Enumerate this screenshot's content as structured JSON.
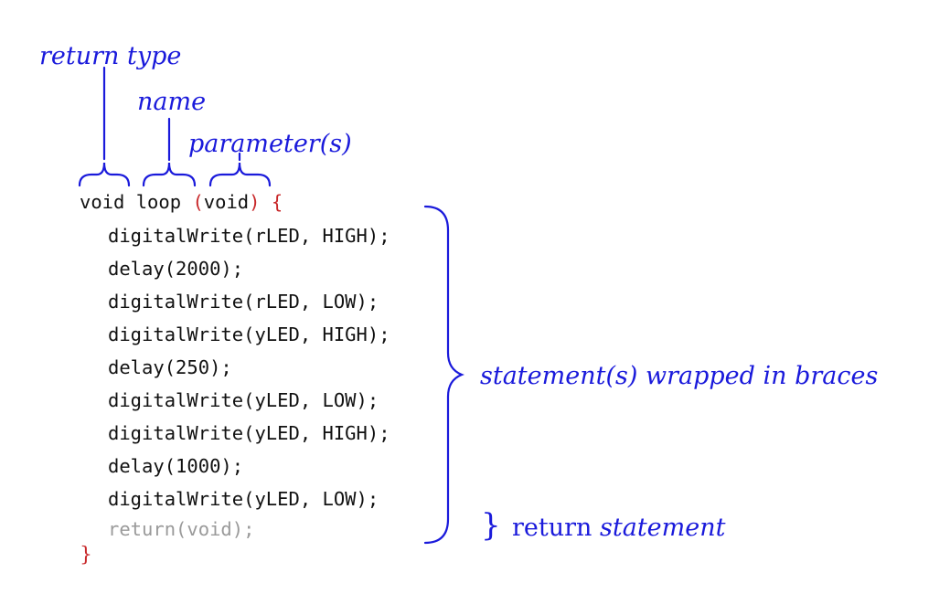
{
  "annotations": {
    "return_type": "return type",
    "name": "name",
    "parameters": "parameter(s)",
    "statements": "statement(s) wrapped in braces",
    "return_word": "return",
    "statement_word": "statement"
  },
  "code": {
    "header_type": "void",
    "header_name": "loop",
    "header_paren_open": "(",
    "header_param": "void",
    "header_paren_close": ")",
    "header_brace": "{",
    "lines": [
      "digitalWrite(rLED, HIGH);",
      "delay(2000);",
      "digitalWrite(rLED, LOW);",
      "digitalWrite(yLED, HIGH);",
      "delay(250);",
      "digitalWrite(yLED, LOW);",
      "digitalWrite(yLED, HIGH);",
      "delay(1000);",
      "digitalWrite(yLED, LOW);"
    ],
    "return_line": "return(void);",
    "closing_brace": "}"
  },
  "colors": {
    "annotation": "#1a1adb",
    "keyword_red": "#c8282a",
    "code": "#111111",
    "muted": "#9a9a9a"
  }
}
